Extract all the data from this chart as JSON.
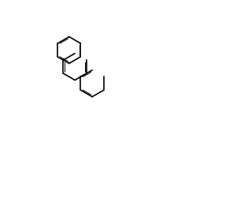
{
  "bg": "#ffffff",
  "lc": "#000000",
  "lw": 1.2,
  "lw2": 0.7,
  "fs": 7.5
}
